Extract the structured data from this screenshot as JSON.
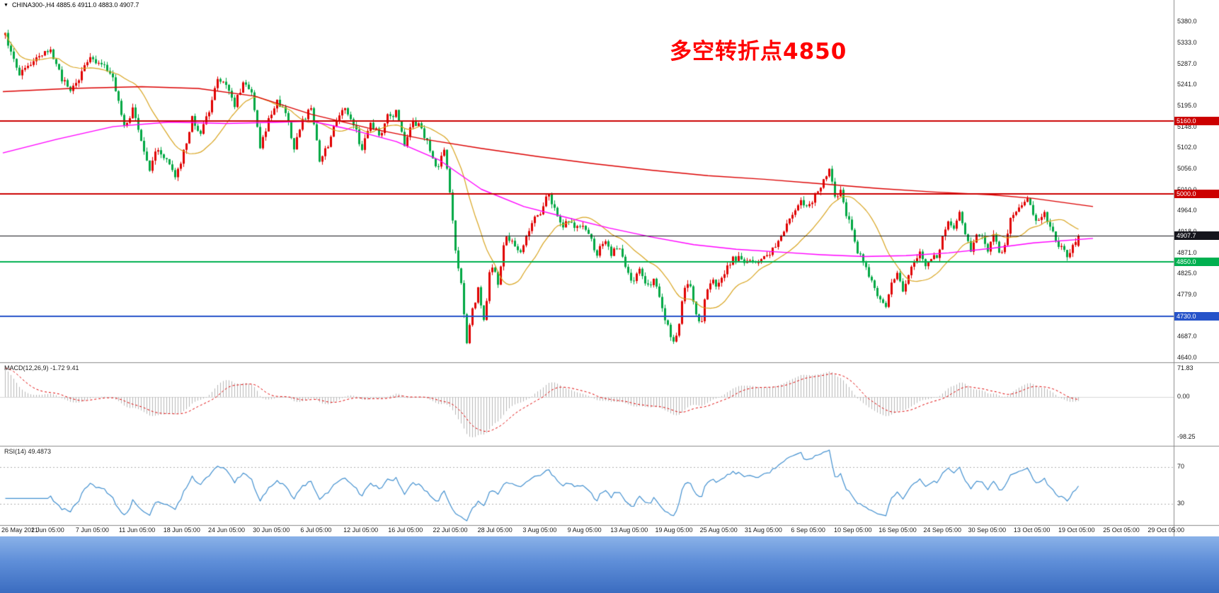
{
  "terminal": {
    "symbol_line": "CHINA300-,H4  4885.6 4911.0 4883.0 4907.7",
    "dropdown_icon": "▼"
  },
  "annotation": {
    "text": "多空转折点4850",
    "color": "#FF0000"
  },
  "indicators": {
    "macd": {
      "label": "MACD(12,26,9) -1.72 9.41",
      "axis_labels": [
        "71.83",
        "0.00",
        "-98.25"
      ]
    },
    "rsi": {
      "label": "RSI(14) 49.4873",
      "axis_labels": [
        "70",
        "30"
      ]
    }
  },
  "colors": {
    "bull": "#E00000",
    "bear": "#00A843",
    "ma_fast": "#D9A520",
    "ma_mid": "#FF00FF",
    "ma_slow": "#DC0000",
    "macd_hist": "#B8B8B8",
    "macd_signal": "#E00000",
    "rsi_line": "#4290D0",
    "separator": "#8C8C8C",
    "taskbar_top": "#8AB2E8",
    "taskbar_mid": "#5E8ED8",
    "taskbar_bottom": "#3B6CC0"
  },
  "chart_data": [
    {
      "type": "candlestick",
      "symbol": "CHINA300-",
      "timeframe": "H4",
      "y_range": [
        4640,
        5380
      ],
      "y_axis_labels": [
        "5380.0",
        "5333.0",
        "5287.0",
        "5241.0",
        "5195.0",
        "5148.0",
        "5102.0",
        "5056.0",
        "5010.0",
        "4964.0",
        "4918.0",
        "4871.0",
        "4825.0",
        "4779.0",
        "4733.0",
        "4687.0",
        "4640.0"
      ],
      "x_axis_labels": [
        "26 May 2021",
        "1 Jun 05:00",
        "7 Jun 05:00",
        "11 Jun 05:00",
        "18 Jun 05:00",
        "24 Jun 05:00",
        "30 Jun 05:00",
        "6 Jul 05:00",
        "12 Jul 05:00",
        "16 Jul 05:00",
        "22 Jul 05:00",
        "28 Jul 05:00",
        "3 Aug 05:00",
        "9 Aug 05:00",
        "13 Aug 05:00",
        "19 Aug 05:00",
        "25 Aug 05:00",
        "31 Aug 05:00",
        "6 Sep 05:00",
        "10 Sep 05:00",
        "16 Sep 05:00",
        "24 Sep 05:00",
        "30 Sep 05:00",
        "13 Oct 05:00",
        "19 Oct 05:00",
        "25 Oct 05:00",
        "29 Oct 05:00"
      ],
      "current_bar": {
        "open": 4885.6,
        "high": 4911.0,
        "low": 4883.0,
        "close": 4907.7
      },
      "candle_count": 380,
      "horizontal_levels": [
        {
          "price": 5160.0,
          "label": "5160.0",
          "color": "#CC0000",
          "role": "resistance"
        },
        {
          "price": 5000.0,
          "label": "5000.0",
          "color": "#CC0000",
          "role": "resistance"
        },
        {
          "price": 4907.7,
          "label": "4907.7",
          "color": "#15151C",
          "role": "current-price"
        },
        {
          "price": 4850.0,
          "label": "4850.0",
          "color": "#00B050",
          "role": "pivot"
        },
        {
          "price": 4730.0,
          "label": "4730.0",
          "color": "#2653C9",
          "role": "support"
        }
      ],
      "price_path_anchors": [
        [
          6,
          5350
        ],
        [
          12,
          5315
        ],
        [
          20,
          5285
        ],
        [
          28,
          5262
        ],
        [
          40,
          5285
        ],
        [
          56,
          5308
        ],
        [
          70,
          5322
        ],
        [
          84,
          5258
        ],
        [
          98,
          5228
        ],
        [
          112,
          5262
        ],
        [
          126,
          5298
        ],
        [
          142,
          5284
        ],
        [
          156,
          5268
        ],
        [
          166,
          5200
        ],
        [
          176,
          5145
        ],
        [
          186,
          5190
        ],
        [
          198,
          5120
        ],
        [
          210,
          5058
        ],
        [
          222,
          5100
        ],
        [
          234,
          5075
        ],
        [
          246,
          5038
        ],
        [
          258,
          5090
        ],
        [
          270,
          5168
        ],
        [
          282,
          5135
        ],
        [
          294,
          5185
        ],
        [
          306,
          5248
        ],
        [
          318,
          5238
        ],
        [
          330,
          5195
        ],
        [
          342,
          5245
        ],
        [
          354,
          5228
        ],
        [
          366,
          5105
        ],
        [
          378,
          5160
        ],
        [
          390,
          5210
        ],
        [
          402,
          5175
        ],
        [
          414,
          5105
        ],
        [
          426,
          5160
        ],
        [
          438,
          5190
        ],
        [
          450,
          5078
        ],
        [
          462,
          5108
        ],
        [
          474,
          5162
        ],
        [
          486,
          5188
        ],
        [
          498,
          5155
        ],
        [
          510,
          5095
        ],
        [
          522,
          5158
        ],
        [
          534,
          5128
        ],
        [
          546,
          5168
        ],
        [
          558,
          5180
        ],
        [
          570,
          5108
        ],
        [
          582,
          5162
        ],
        [
          594,
          5145
        ],
        [
          606,
          5100
        ],
        [
          616,
          5058
        ],
        [
          626,
          5095
        ],
        [
          634,
          5010
        ],
        [
          642,
          4880
        ],
        [
          650,
          4800
        ],
        [
          658,
          4668
        ],
        [
          666,
          4742
        ],
        [
          674,
          4788
        ],
        [
          682,
          4718
        ],
        [
          692,
          4848
        ],
        [
          702,
          4805
        ],
        [
          712,
          4908
        ],
        [
          722,
          4890
        ],
        [
          732,
          4868
        ],
        [
          742,
          4908
        ],
        [
          752,
          4938
        ],
        [
          762,
          4960
        ],
        [
          772,
          5000
        ],
        [
          782,
          4968
        ],
        [
          792,
          4928
        ],
        [
          802,
          4940
        ],
        [
          812,
          4920
        ],
        [
          822,
          4935
        ],
        [
          832,
          4900
        ],
        [
          842,
          4870
        ],
        [
          852,
          4900
        ],
        [
          862,
          4865
        ],
        [
          872,
          4885
        ],
        [
          882,
          4840
        ],
        [
          892,
          4800
        ],
        [
          902,
          4832
        ],
        [
          912,
          4788
        ],
        [
          922,
          4812
        ],
        [
          932,
          4760
        ],
        [
          940,
          4718
        ],
        [
          948,
          4668
        ],
        [
          956,
          4690
        ],
        [
          964,
          4780
        ],
        [
          972,
          4808
        ],
        [
          980,
          4742
        ],
        [
          988,
          4705
        ],
        [
          996,
          4780
        ],
        [
          1004,
          4818
        ],
        [
          1012,
          4792
        ],
        [
          1020,
          4825
        ],
        [
          1030,
          4850
        ],
        [
          1040,
          4862
        ],
        [
          1050,
          4842
        ],
        [
          1060,
          4856
        ],
        [
          1070,
          4848
        ],
        [
          1080,
          4858
        ],
        [
          1090,
          4876
        ],
        [
          1100,
          4900
        ],
        [
          1110,
          4932
        ],
        [
          1120,
          4962
        ],
        [
          1130,
          4988
        ],
        [
          1140,
          4972
        ],
        [
          1150,
          4998
        ],
        [
          1160,
          5020
        ],
        [
          1170,
          5048
        ],
        [
          1178,
          4995
        ],
        [
          1186,
          5008
        ],
        [
          1194,
          4958
        ],
        [
          1202,
          4920
        ],
        [
          1210,
          4870
        ],
        [
          1220,
          4848
        ],
        [
          1230,
          4805
        ],
        [
          1240,
          4770
        ],
        [
          1250,
          4758
        ],
        [
          1258,
          4802
        ],
        [
          1266,
          4828
        ],
        [
          1274,
          4790
        ],
        [
          1282,
          4822
        ],
        [
          1290,
          4855
        ],
        [
          1298,
          4870
        ],
        [
          1306,
          4845
        ],
        [
          1314,
          4858
        ],
        [
          1322,
          4862
        ],
        [
          1330,
          4902
        ],
        [
          1338,
          4942
        ],
        [
          1346,
          4920
        ],
        [
          1354,
          4955
        ],
        [
          1362,
          4912
        ],
        [
          1370,
          4868
        ],
        [
          1378,
          4912
        ],
        [
          1386,
          4905
        ],
        [
          1394,
          4880
        ],
        [
          1402,
          4908
        ],
        [
          1410,
          4872
        ],
        [
          1418,
          4886
        ],
        [
          1426,
          4940
        ],
        [
          1434,
          4962
        ],
        [
          1442,
          4982
        ],
        [
          1450,
          4995
        ],
        [
          1458,
          4960
        ],
        [
          1466,
          4935
        ],
        [
          1474,
          4955
        ],
        [
          1482,
          4930
        ],
        [
          1490,
          4895
        ],
        [
          1498,
          4878
        ],
        [
          1506,
          4862
        ],
        [
          1514,
          4882
        ],
        [
          1524,
          4906
        ]
      ],
      "moving_averages": [
        {
          "name": "ma-fast",
          "color": "#D9A520",
          "period": 20,
          "source": "close"
        },
        {
          "name": "ma-mid",
          "color": "#FF00FF",
          "points": [
            [
              4,
              5090
            ],
            [
              80,
              5120
            ],
            [
              160,
              5148
            ],
            [
              240,
              5158
            ],
            [
              320,
              5155
            ],
            [
              400,
              5158
            ],
            [
              440,
              5160
            ],
            [
              500,
              5140
            ],
            [
              560,
              5115
            ],
            [
              620,
              5075
            ],
            [
              680,
              5010
            ],
            [
              740,
              4972
            ],
            [
              800,
              4948
            ],
            [
              860,
              4925
            ],
            [
              920,
              4905
            ],
            [
              980,
              4888
            ],
            [
              1040,
              4878
            ],
            [
              1100,
              4872
            ],
            [
              1160,
              4866
            ],
            [
              1220,
              4862
            ],
            [
              1280,
              4864
            ],
            [
              1340,
              4870
            ],
            [
              1400,
              4880
            ],
            [
              1460,
              4892
            ],
            [
              1544,
              4902
            ]
          ]
        },
        {
          "name": "ma-slow",
          "color": "#DC0000",
          "points": [
            [
              4,
              5225
            ],
            [
              100,
              5232
            ],
            [
              200,
              5236
            ],
            [
              280,
              5232
            ],
            [
              360,
              5215
            ],
            [
              440,
              5175
            ],
            [
              520,
              5145
            ],
            [
              600,
              5120
            ],
            [
              680,
              5100
            ],
            [
              760,
              5082
            ],
            [
              840,
              5066
            ],
            [
              920,
              5052
            ],
            [
              1000,
              5040
            ],
            [
              1080,
              5032
            ],
            [
              1160,
              5022
            ],
            [
              1240,
              5012
            ],
            [
              1320,
              5004
            ],
            [
              1400,
              4998
            ],
            [
              1460,
              4990
            ],
            [
              1544,
              4972
            ]
          ]
        }
      ]
    },
    {
      "type": "bar",
      "name": "MACD",
      "params": {
        "fast": 12,
        "slow": 26,
        "signal": 9
      },
      "current_main": -1.72,
      "current_signal": 9.41,
      "y_ticks": [
        71.83,
        0.0,
        -98.25
      ],
      "derived_from": "candlestick closes"
    },
    {
      "type": "line",
      "name": "RSI",
      "period": 14,
      "current_value": 49.4873,
      "y_ticks": [
        70,
        30
      ],
      "derived_from": "candlestick closes"
    }
  ]
}
